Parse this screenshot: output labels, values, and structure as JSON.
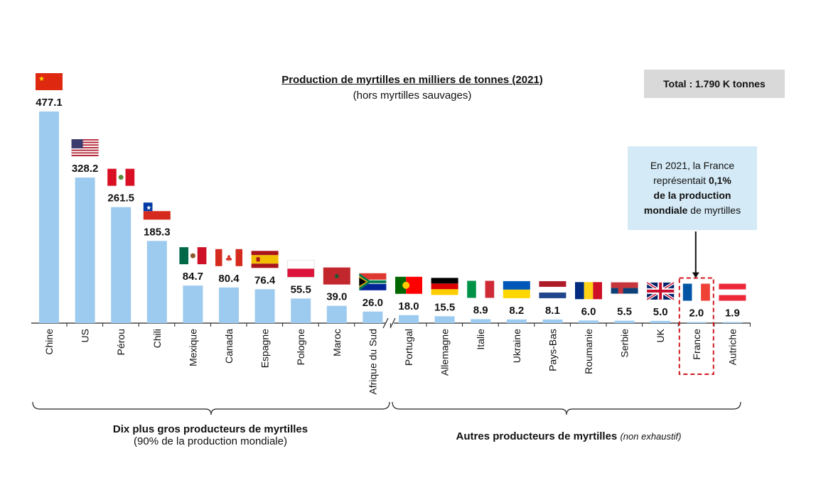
{
  "chart_data": {
    "type": "bar",
    "title": "Production de myrtilles en milliers de tonnes (2021)",
    "subtitle": "(hors myrtilles sauvages)",
    "categories": [
      "Chine",
      "US",
      "Pérou",
      "Chili",
      "Mexique",
      "Canada",
      "Espagne",
      "Pologne",
      "Maroc",
      "Afrique du Sud",
      "Portugal",
      "Allemagne",
      "Italie",
      "Ukraine",
      "Pays-Bas",
      "Roumanie",
      "Serbie",
      "UK",
      "France",
      "Autriche"
    ],
    "values": [
      477.1,
      328.2,
      261.5,
      185.3,
      84.7,
      80.4,
      76.4,
      55.5,
      39.0,
      26.0,
      18.0,
      15.5,
      8.9,
      8.2,
      8.1,
      6.0,
      5.5,
      5.0,
      2.0,
      1.9
    ],
    "value_labels": [
      "477.1",
      "328.2",
      "261.5",
      "185.3",
      "84.7",
      "80.4",
      "76.4",
      "55.5",
      "39.0",
      "26.0",
      "18.0",
      "15.5",
      "8.9",
      "8.2",
      "8.1",
      "6.0",
      "5.5",
      "5.0",
      "2.0",
      "1.9"
    ],
    "flags": [
      "china-flag",
      "us-flag",
      "peru-flag",
      "chile-flag",
      "mexico-flag",
      "canada-flag",
      "spain-flag",
      "poland-flag",
      "morocco-flag",
      "south-africa-flag",
      "portugal-flag",
      "germany-flag",
      "italy-flag",
      "ukraine-flag",
      "netherlands-flag",
      "romania-flag",
      "serbia-flag",
      "uk-flag",
      "france-flag",
      "austria-flag"
    ],
    "axis_break_after": "Afrique du Sud",
    "highlighted": "France",
    "bar_color": "#9dcbf0",
    "grid": false,
    "legend": "none"
  },
  "total_box": "Total : 1.790 K tonnes",
  "callout": {
    "line1": "En 2021, la France",
    "line2_a": "représentait ",
    "line2_b": "0,1%",
    "line3": "de la production",
    "line4_a": "mondiale",
    "line4_b": " de myrtilles"
  },
  "groups": {
    "left_title": "Dix plus gros producteurs de myrtilles",
    "left_sub": "(90% de la production mondiale)",
    "right_title": "Autres producteurs de myrtilles",
    "right_sub": "(non exhaustif)"
  }
}
